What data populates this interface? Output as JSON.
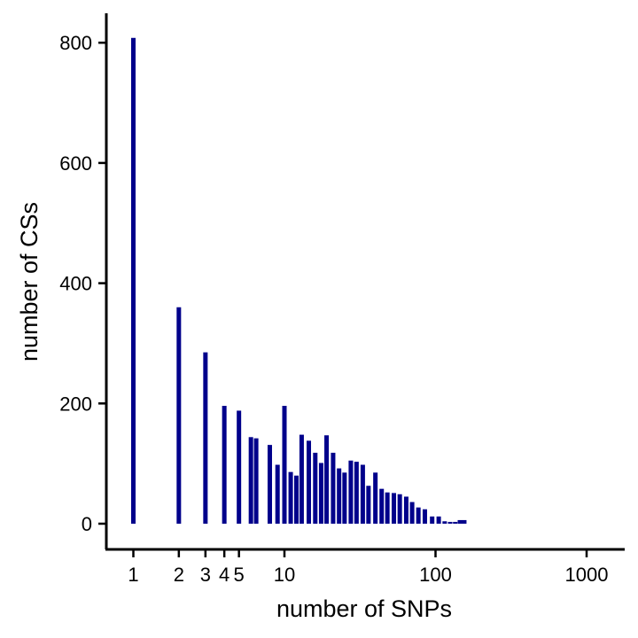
{
  "chart_data": {
    "type": "bar",
    "title": "",
    "xlabel": "number of SNPs",
    "ylabel": "number of CSs",
    "x_scale": "log10",
    "xlim": [
      0.8,
      1500
    ],
    "ylim": [
      -40,
      850
    ],
    "grid": false,
    "bar_color": "#00008B",
    "x_ticks": [
      {
        "value": 1,
        "label": "1"
      },
      {
        "value": 2,
        "label": "2"
      },
      {
        "value": 3,
        "label": "3"
      },
      {
        "value": 4,
        "label": "4"
      },
      {
        "value": 5,
        "label": "5"
      },
      {
        "value": 10,
        "label": "10"
      },
      {
        "value": 100,
        "label": "100"
      },
      {
        "value": 1000,
        "label": "1000"
      }
    ],
    "y_ticks": [
      {
        "value": 0,
        "label": "0"
      },
      {
        "value": 200,
        "label": "200"
      },
      {
        "value": 400,
        "label": "400"
      },
      {
        "value": 600,
        "label": "600"
      },
      {
        "value": 800,
        "label": "800"
      }
    ],
    "points": [
      {
        "x": 1,
        "y": 808
      },
      {
        "x": 2,
        "y": 360
      },
      {
        "x": 3,
        "y": 285
      },
      {
        "x": 4,
        "y": 196
      },
      {
        "x": 5,
        "y": 188
      },
      {
        "x": 6,
        "y": 144
      },
      {
        "x": 6.5,
        "y": 142
      },
      {
        "x": 8,
        "y": 131
      },
      {
        "x": 9,
        "y": 98
      },
      {
        "x": 10,
        "y": 196
      },
      {
        "x": 11,
        "y": 86
      },
      {
        "x": 12,
        "y": 80
      },
      {
        "x": 13,
        "y": 148
      },
      {
        "x": 14.5,
        "y": 138
      },
      {
        "x": 16,
        "y": 118
      },
      {
        "x": 17.5,
        "y": 101
      },
      {
        "x": 19,
        "y": 147
      },
      {
        "x": 21,
        "y": 118
      },
      {
        "x": 23,
        "y": 92
      },
      {
        "x": 25,
        "y": 85
      },
      {
        "x": 27.5,
        "y": 105
      },
      {
        "x": 30,
        "y": 103
      },
      {
        "x": 33,
        "y": 98
      },
      {
        "x": 36,
        "y": 63
      },
      {
        "x": 40,
        "y": 85
      },
      {
        "x": 44,
        "y": 58
      },
      {
        "x": 48,
        "y": 52
      },
      {
        "x": 53,
        "y": 51
      },
      {
        "x": 58,
        "y": 49
      },
      {
        "x": 64,
        "y": 45
      },
      {
        "x": 70,
        "y": 36
      },
      {
        "x": 77,
        "y": 27
      },
      {
        "x": 85,
        "y": 24
      },
      {
        "x": 95,
        "y": 12
      },
      {
        "x": 105,
        "y": 12
      },
      {
        "x": 115,
        "y": 4
      },
      {
        "x": 125,
        "y": 3
      },
      {
        "x": 135,
        "y": 3
      },
      {
        "x": 145,
        "y": 6
      },
      {
        "x": 155,
        "y": 6
      }
    ]
  }
}
